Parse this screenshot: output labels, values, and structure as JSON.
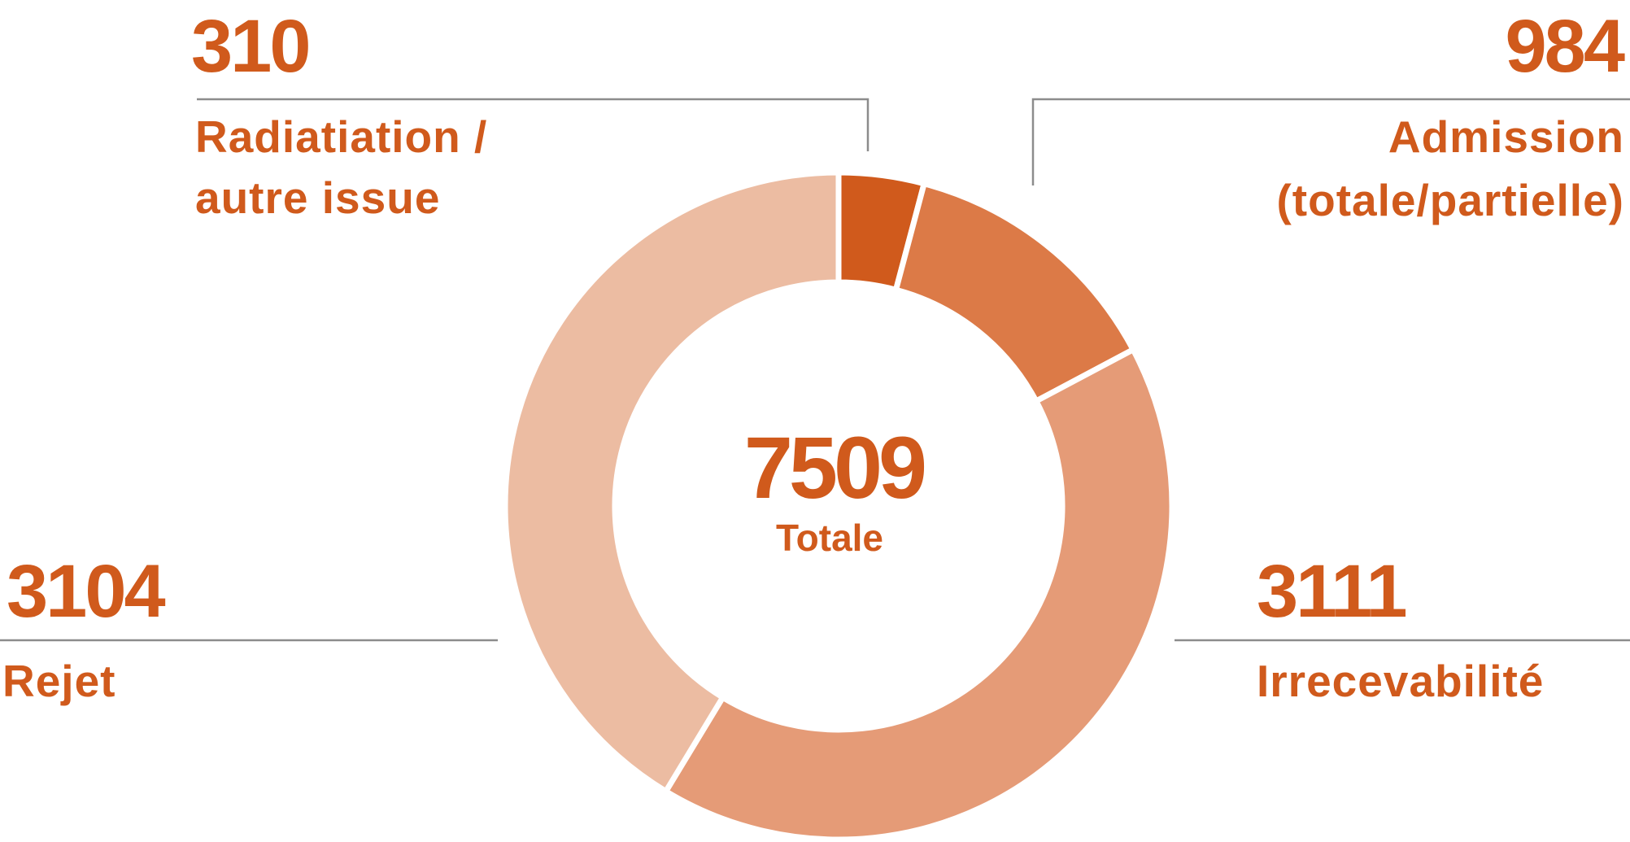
{
  "chart_data": {
    "type": "pie",
    "donut": true,
    "total": {
      "value": "7509",
      "label": "Totale"
    },
    "slices": [
      {
        "label_lines": [
          "Radiatiation /",
          "autre issue"
        ],
        "value": 310,
        "color": "#d05a1c"
      },
      {
        "label_lines": [
          "Admission",
          "(totale/partielle)"
        ],
        "value": 984,
        "color": "#dc7a47"
      },
      {
        "label_lines": [
          "Irrecevabilité"
        ],
        "value": 3111,
        "color": "#e59b77"
      },
      {
        "label_lines": [
          "Rejet"
        ],
        "value": 3104,
        "color": "#ecbca2"
      }
    ],
    "legend": "callouts",
    "text_color": "#d05a1c",
    "leader_color": "#8c8c8c"
  }
}
